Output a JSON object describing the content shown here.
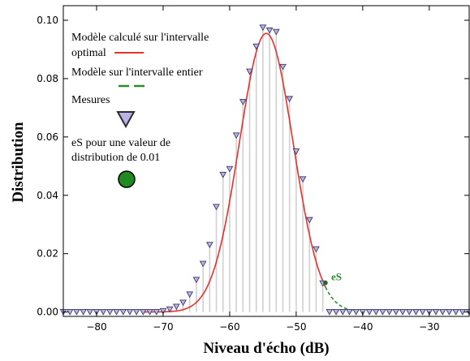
{
  "chart_data": {
    "type": "line",
    "xlabel": "Niveau d'écho (dB)",
    "ylabel": "Distribution",
    "xlim": [
      -85,
      -24
    ],
    "ylim": [
      -0.0015,
      0.105
    ],
    "xticks": [
      -80,
      -70,
      -60,
      -50,
      -40,
      -30
    ],
    "yticks": [
      0.0,
      0.02,
      0.04,
      0.06,
      0.08,
      0.1
    ],
    "xtick_labels": [
      "−80",
      "−70",
      "−60",
      "−50",
      "−40",
      "−30"
    ],
    "ytick_labels": [
      "0.00",
      "0.02",
      "0.04",
      "0.06",
      "0.08",
      "0.10"
    ],
    "legend": {
      "placement": "top-left",
      "entries": [
        {
          "label_line1": "Modèle calculé sur l'intervalle",
          "label_line2": "optimal",
          "style": "solid",
          "color": "#e8312b"
        },
        {
          "label_line1": "Modèle sur l'intervalle entier",
          "style": "dashed",
          "color": "#2e8b2e"
        },
        {
          "label_line1": "Mesures",
          "marker": "triangle-down",
          "color": "#b9b3e6"
        },
        {
          "label_line1": "eS pour une valeur de",
          "label_line2": "distribution de 0.01",
          "marker": "circle",
          "color": "#1f8a1f"
        }
      ]
    },
    "model": {
      "type": "gaussian",
      "mean": -54.5,
      "sigma": 4.05,
      "amplitude": 0.0955
    },
    "series": [
      {
        "style": "markers+stems",
        "x": [
          -85,
          -84,
          -83,
          -82,
          -81,
          -80,
          -79,
          -78,
          -77,
          -76,
          -75,
          -74,
          -73,
          -72,
          -71,
          -70,
          -69,
          -68,
          -67,
          -66,
          -65,
          -64,
          -63,
          -62,
          -61,
          -60,
          -59,
          -58,
          -57,
          -56,
          -55,
          -54,
          -53,
          -52,
          -51,
          -50,
          -49,
          -48,
          -47,
          -46,
          -45,
          -44,
          -43,
          -42,
          -41,
          -40,
          -39,
          -38,
          -37,
          -36,
          -35,
          -34,
          -33,
          -32,
          -31,
          -30,
          -29,
          -28,
          -27,
          -26,
          -25,
          -24
        ],
        "values": [
          0,
          0,
          0,
          0,
          0,
          0,
          0,
          0,
          0,
          0,
          0,
          0,
          0,
          0,
          0,
          0.0003,
          0.0009,
          0.0018,
          0.0032,
          0.006,
          0.011,
          0.0165,
          0.023,
          0.036,
          0.047,
          0.049,
          0.0605,
          0.072,
          0.0824,
          0.091,
          0.0975,
          0.0965,
          0.096,
          0.084,
          0.073,
          0.055,
          0.0455,
          0.0315,
          0.0215,
          0.0098,
          0,
          0,
          0,
          0,
          0,
          0,
          0,
          0,
          0,
          0,
          0,
          0,
          0,
          0,
          0,
          0,
          0,
          0,
          0,
          0,
          0,
          0
        ]
      }
    ],
    "annotation": {
      "text": "eS",
      "x": -45.6,
      "y": 0.01,
      "color": "#2e8b2e"
    }
  }
}
